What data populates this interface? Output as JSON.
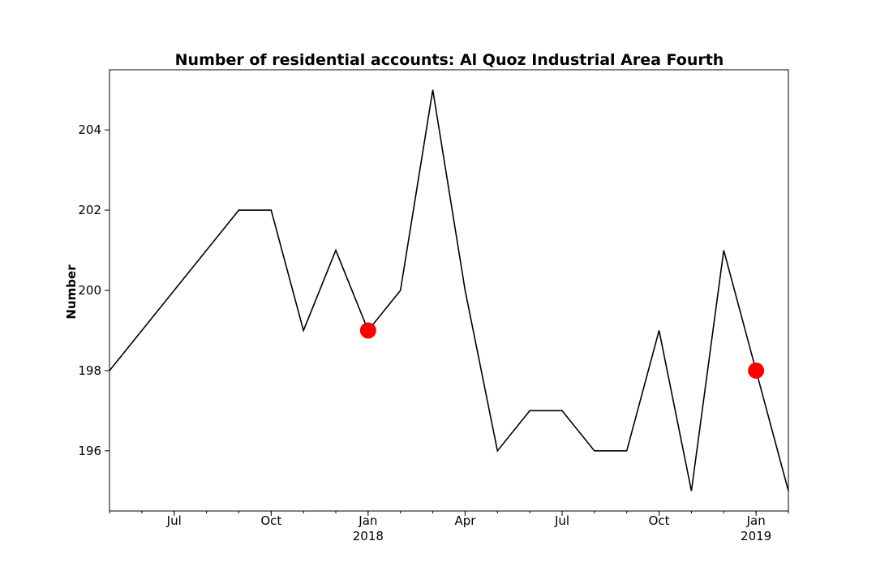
{
  "chart_data": {
    "type": "line",
    "title": "Number of residential accounts: Al Quoz Industrial Area Fourth",
    "xlabel": "",
    "ylabel": "Number",
    "x": [
      "2017-05",
      "2017-06",
      "2017-07",
      "2017-08",
      "2017-09",
      "2017-10",
      "2017-11",
      "2017-12",
      "2018-01",
      "2018-02",
      "2018-03",
      "2018-04",
      "2018-05",
      "2018-06",
      "2018-07",
      "2018-08",
      "2018-09",
      "2018-10",
      "2018-11",
      "2018-12",
      "2019-01",
      "2019-02"
    ],
    "series": [
      {
        "values": [
          198,
          199,
          200,
          201,
          202,
          202,
          199,
          201,
          199,
          200,
          205,
          200,
          196,
          197,
          197,
          196,
          196,
          199,
          195,
          201,
          198,
          195
        ],
        "color": "#000000"
      }
    ],
    "highlights": [
      {
        "x": "2018-01",
        "y": 199,
        "color": "#ff0000"
      },
      {
        "x": "2019-01",
        "y": 198,
        "color": "#ff0000"
      }
    ],
    "xlim": [
      "2017-05",
      "2019-02"
    ],
    "ylim": [
      194.5,
      205.5
    ],
    "yticks": [
      196,
      198,
      200,
      202,
      204
    ],
    "xticks": [
      {
        "x": "2017-07",
        "label": "Jul",
        "year": ""
      },
      {
        "x": "2017-10",
        "label": "Oct",
        "year": ""
      },
      {
        "x": "2018-01",
        "label": "Jan",
        "year": "2018"
      },
      {
        "x": "2018-04",
        "label": "Apr",
        "year": ""
      },
      {
        "x": "2018-07",
        "label": "Jul",
        "year": ""
      },
      {
        "x": "2018-10",
        "label": "Oct",
        "year": ""
      },
      {
        "x": "2019-01",
        "label": "Jan",
        "year": "2019"
      }
    ],
    "grid": false,
    "legend": "none"
  }
}
